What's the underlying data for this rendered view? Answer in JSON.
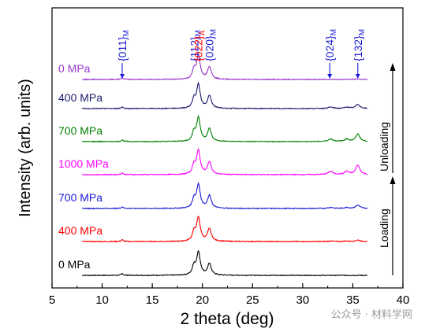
{
  "chart_data": {
    "type": "line",
    "xlabel": "2 theta (deg)",
    "ylabel": "Intensity (arb. units)",
    "xlim": [
      5,
      40
    ],
    "xticks": [
      5,
      10,
      15,
      20,
      25,
      30,
      35,
      40
    ],
    "grid": false,
    "legend": "none",
    "series": [
      {
        "name": "0 MPa",
        "color": "#000000",
        "baseline": 0,
        "scale": 1.0,
        "side_peaks": 0.0,
        "main_peak_intensity": 18.5
      },
      {
        "name": "400 MPa",
        "color": "#ff0000",
        "baseline": 1,
        "scale": 1.0,
        "side_peaks": 0.15,
        "main_peak_intensity": 19.0
      },
      {
        "name": "700 MPa",
        "color": "#1b1bd6",
        "baseline": 2,
        "scale": 1.0,
        "side_peaks": 0.35,
        "main_peak_intensity": 19.0
      },
      {
        "name": "1000 MPa",
        "color": "#ff00ff",
        "baseline": 3,
        "scale": 1.0,
        "side_peaks": 1.0,
        "main_peak_intensity": 19.0
      },
      {
        "name": "700 MPa",
        "color": "#008000",
        "baseline": 4,
        "scale": 1.0,
        "side_peaks": 0.8,
        "main_peak_intensity": 19.0
      },
      {
        "name": "400 MPa",
        "color": "#1a1a6e",
        "baseline": 5,
        "scale": 1.0,
        "side_peaks": 0.45,
        "main_peak_intensity": 19.0
      },
      {
        "name": "0 MPa",
        "color": "#9933cc",
        "baseline": 6,
        "scale": 1.0,
        "side_peaks": 0.05,
        "main_peak_intensity": 19.0
      }
    ],
    "peak_annotations": [
      {
        "label": "{011}",
        "subscript": "M",
        "x": 12.0,
        "color": "#1b1bd6"
      },
      {
        "label": "{112}",
        "subscript": "M",
        "x": 19.2,
        "color": "#1b1bd6"
      },
      {
        "label": "{022}",
        "subscript": "A",
        "x": 19.6,
        "color": "#ff0000"
      },
      {
        "label": "{020}",
        "subscript": "M",
        "x": 20.7,
        "color": "#1b1bd6"
      },
      {
        "label": "{024}",
        "subscript": "M",
        "x": 32.7,
        "color": "#1b1bd6"
      },
      {
        "label": "{132}",
        "subscript": "M",
        "x": 35.5,
        "color": "#1b1bd6"
      }
    ],
    "process_labels": {
      "loading": "Loading",
      "unloading": "Unloading"
    }
  },
  "watermark": "公众号 · 材料学网"
}
